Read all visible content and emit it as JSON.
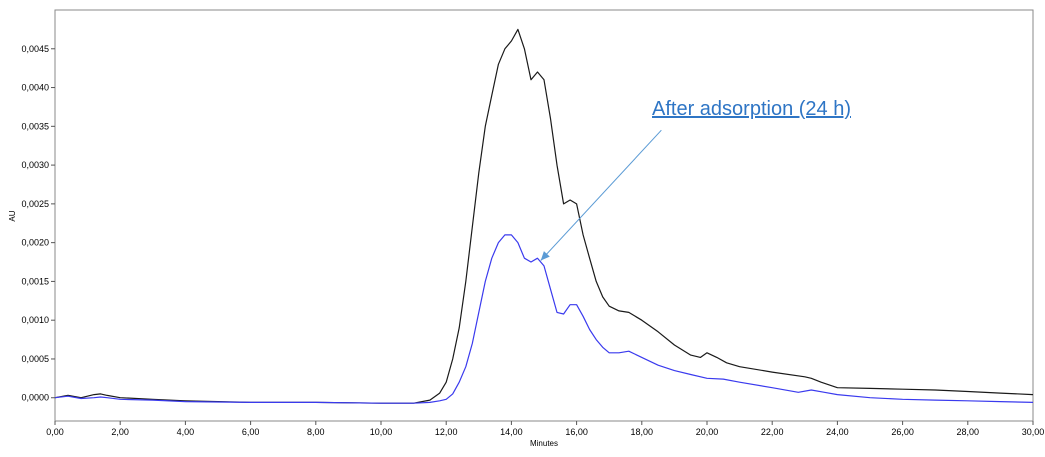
{
  "chart_data": {
    "type": "line",
    "xlabel": "Minutes",
    "ylabel": "AU",
    "xlim": [
      0,
      30
    ],
    "ylim": [
      -0.0003,
      0.005
    ],
    "grid": false,
    "x_ticks": [
      0,
      2,
      4,
      6,
      8,
      10,
      12,
      14,
      16,
      18,
      20,
      22,
      24,
      26,
      28,
      30
    ],
    "x_tick_labels": [
      "0,00",
      "2,00",
      "4,00",
      "6,00",
      "8,00",
      "10,00",
      "12,00",
      "14,00",
      "16,00",
      "18,00",
      "20,00",
      "22,00",
      "24,00",
      "26,00",
      "28,00",
      "30,00"
    ],
    "y_ticks": [
      0,
      0.0005,
      0.001,
      0.0015,
      0.002,
      0.0025,
      0.003,
      0.0035,
      0.004,
      0.0045
    ],
    "y_tick_labels": [
      "0,0000",
      "0,0005",
      "0,0010",
      "0,0015",
      "0,0020",
      "0,0025",
      "0,0030",
      "0,0035",
      "0,0040",
      "0,0045"
    ],
    "series": [
      {
        "color": "#1a1a1a",
        "x": [
          0,
          0.4,
          0.8,
          1.2,
          1.4,
          1.6,
          2,
          3,
          4,
          6,
          8,
          10,
          11,
          11.5,
          11.8,
          12,
          12.2,
          12.4,
          12.6,
          12.8,
          13,
          13.2,
          13.4,
          13.6,
          13.8,
          14,
          14.2,
          14.4,
          14.6,
          14.8,
          15,
          15.2,
          15.4,
          15.6,
          15.8,
          16,
          16.2,
          16.4,
          16.6,
          16.8,
          17,
          17.3,
          17.6,
          18,
          18.5,
          19,
          19.5,
          19.8,
          20,
          20.3,
          20.6,
          21,
          22,
          23,
          23.2,
          23.5,
          24,
          25,
          26,
          27,
          28,
          29,
          30
        ],
        "y": [
          0,
          3e-05,
          0.0,
          4e-05,
          5e-05,
          3e-05,
          0.0,
          -2e-05,
          -4e-05,
          -6e-05,
          -6e-05,
          -7e-05,
          -7e-05,
          -3e-05,
          6e-05,
          0.0002,
          0.0005,
          0.0009,
          0.0015,
          0.0022,
          0.0029,
          0.0035,
          0.0039,
          0.0043,
          0.0045,
          0.0046,
          0.00475,
          0.0045,
          0.0041,
          0.0042,
          0.0041,
          0.0036,
          0.003,
          0.0025,
          0.00255,
          0.0025,
          0.0021,
          0.0018,
          0.0015,
          0.0013,
          0.00118,
          0.00112,
          0.0011,
          0.001,
          0.00085,
          0.00068,
          0.00055,
          0.00052,
          0.00058,
          0.00052,
          0.00045,
          0.0004,
          0.00033,
          0.00027,
          0.00025,
          0.0002,
          0.00013,
          0.00012,
          0.00011,
          0.0001,
          8e-05,
          6e-05,
          4e-05
        ]
      },
      {
        "color": "#3a3aee",
        "x": [
          0,
          0.4,
          0.8,
          1.2,
          1.4,
          1.6,
          2,
          3,
          4,
          6,
          8,
          10,
          11,
          11.5,
          11.8,
          12,
          12.2,
          12.4,
          12.6,
          12.8,
          13,
          13.2,
          13.4,
          13.6,
          13.8,
          14,
          14.2,
          14.4,
          14.6,
          14.8,
          15,
          15.2,
          15.4,
          15.6,
          15.8,
          16,
          16.2,
          16.4,
          16.6,
          16.8,
          17,
          17.3,
          17.6,
          18,
          18.5,
          19,
          19.5,
          20,
          20.5,
          21,
          22,
          22.8,
          23.2,
          23.6,
          24,
          25,
          26,
          27,
          28,
          29,
          30
        ],
        "y": [
          0,
          2e-05,
          -1e-05,
          0.0,
          1e-05,
          0.0,
          -2e-05,
          -3e-05,
          -5e-05,
          -6e-05,
          -6e-05,
          -7e-05,
          -7e-05,
          -6e-05,
          -4e-05,
          -2e-05,
          5e-05,
          0.0002,
          0.0004,
          0.0007,
          0.0011,
          0.0015,
          0.0018,
          0.002,
          0.0021,
          0.0021,
          0.002,
          0.0018,
          0.00175,
          0.0018,
          0.0017,
          0.0014,
          0.0011,
          0.00108,
          0.0012,
          0.0012,
          0.00105,
          0.00088,
          0.00075,
          0.00065,
          0.00058,
          0.00058,
          0.0006,
          0.00052,
          0.00042,
          0.00035,
          0.0003,
          0.00025,
          0.00024,
          0.0002,
          0.00013,
          7e-05,
          0.0001,
          7e-05,
          4e-05,
          0.0,
          -2e-05,
          -3e-05,
          -4e-05,
          -5e-05,
          -6e-05
        ]
      }
    ],
    "annotation": {
      "text": "After adsorption (24 h)",
      "color": "#2e75c5",
      "arrow_from": [
        18.6,
        0.00345
      ],
      "arrow_to": [
        14.9,
        0.00177
      ]
    }
  }
}
